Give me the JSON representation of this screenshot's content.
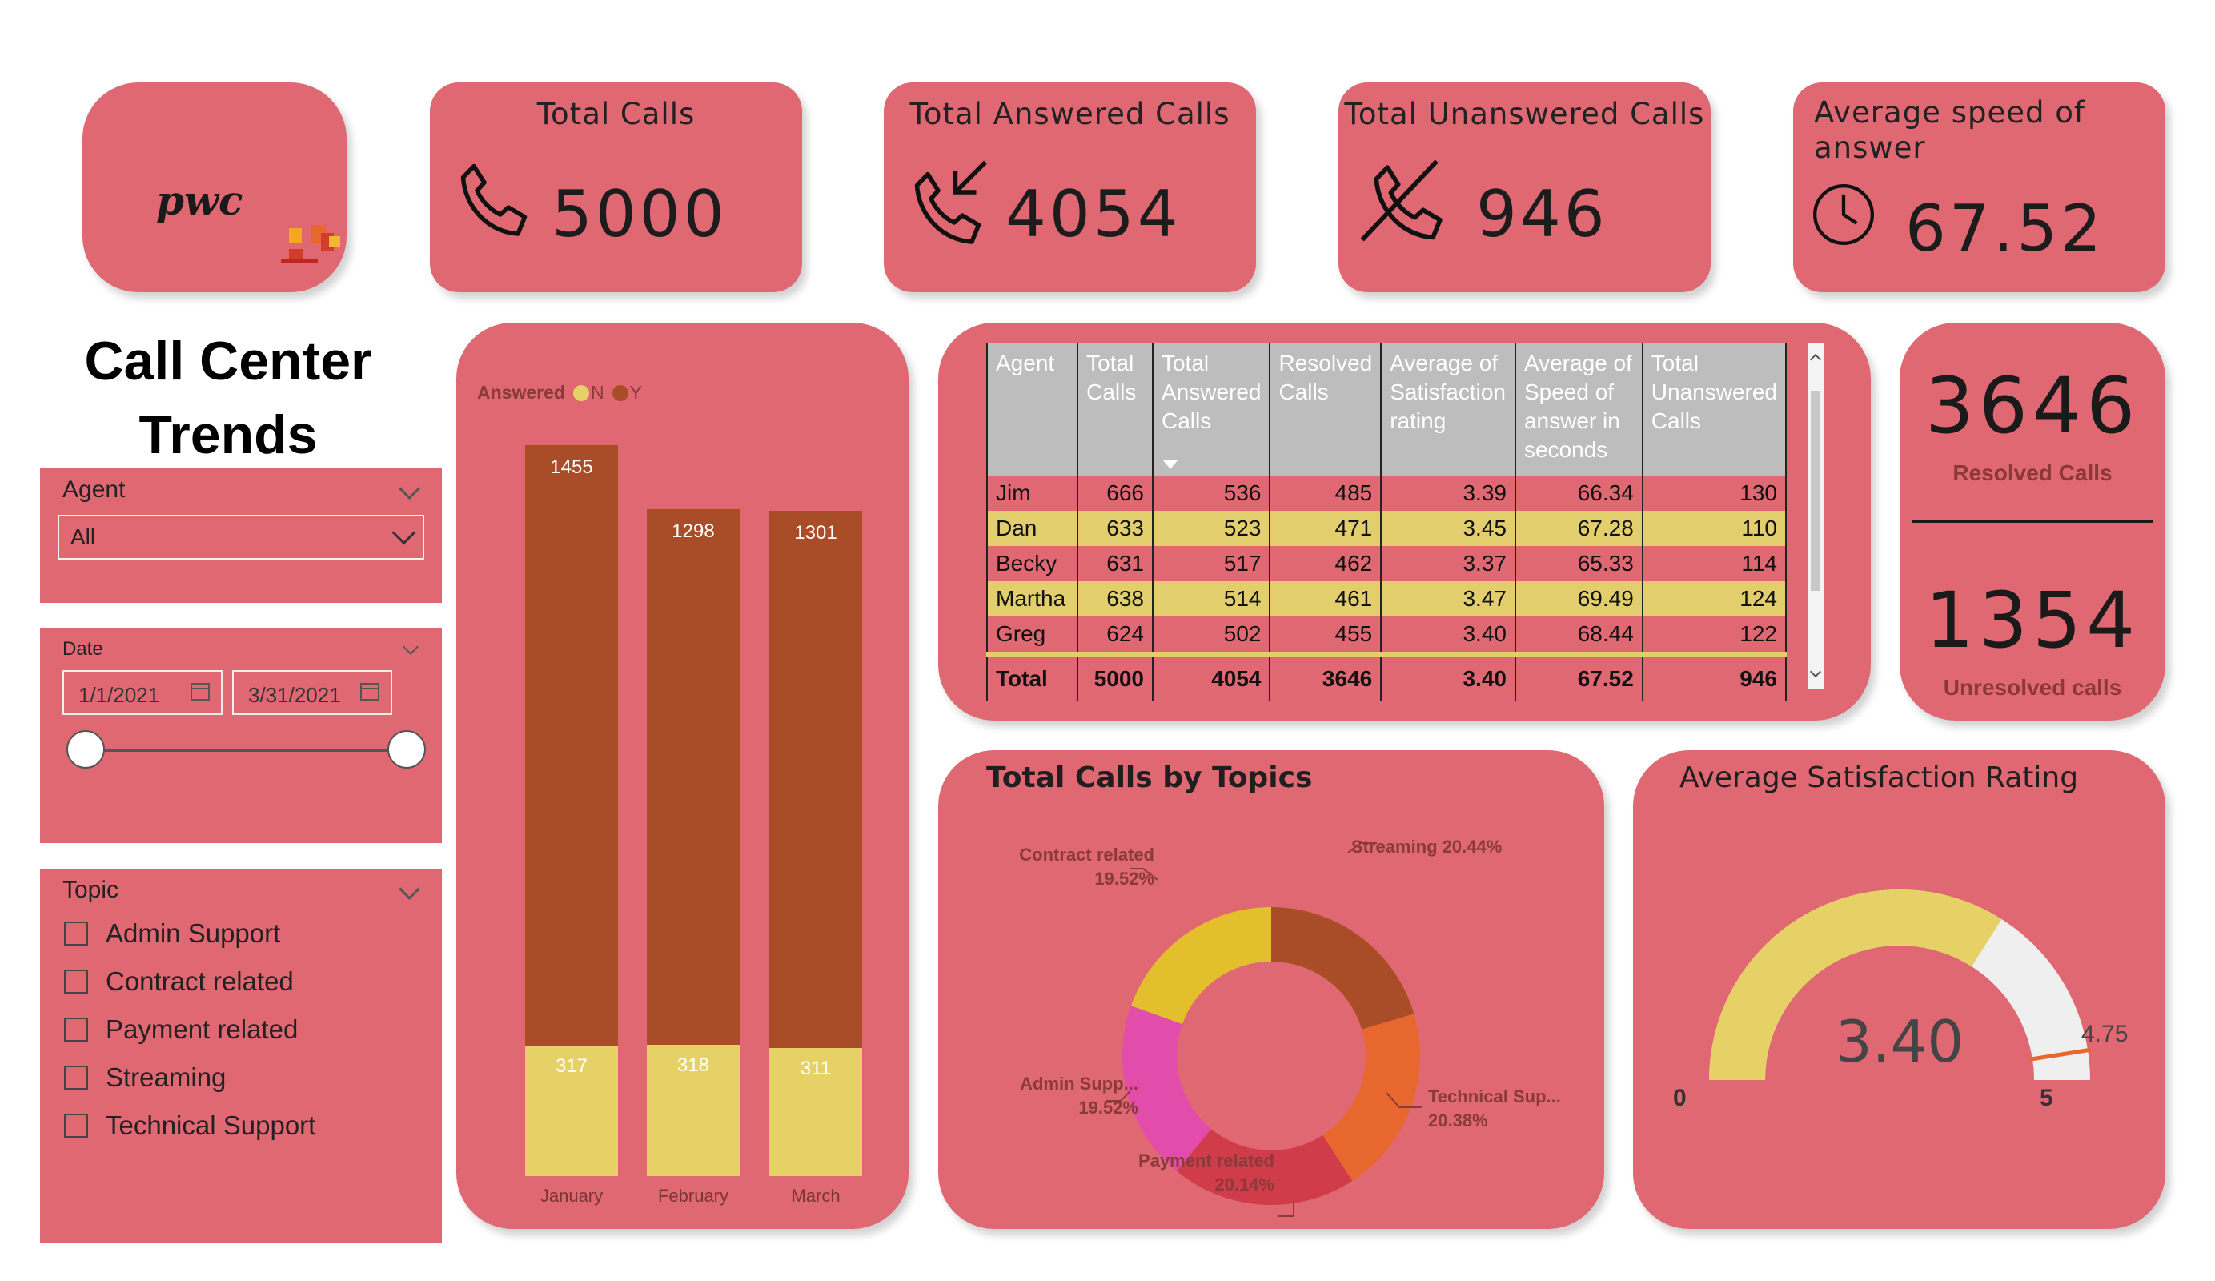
{
  "brand": {
    "logo_text": "pwc"
  },
  "kpis": {
    "total_calls": {
      "title": "Total Calls",
      "value": "5000"
    },
    "answered": {
      "title": "Total Answered Calls",
      "value": "4054"
    },
    "unanswered": {
      "title": "Total Unanswered Calls",
      "value": "946"
    },
    "speed": {
      "title_line1": "Average speed of",
      "title_line2": "answer",
      "value": "67.52"
    }
  },
  "page_title": {
    "line1": "Call Center",
    "line2": "Trends"
  },
  "filters": {
    "agent": {
      "label": "Agent",
      "selected": "All"
    },
    "date": {
      "label": "Date",
      "start": "1/1/2021",
      "end": "3/31/2021"
    },
    "topic": {
      "label": "Topic",
      "options": [
        "Admin Support",
        "Contract related",
        "Payment related",
        "Streaming",
        "Technical Support"
      ]
    }
  },
  "chart_data": {
    "type": "bar",
    "stacked": true,
    "title": "",
    "legend_title": "Answered",
    "categories": [
      "January",
      "February",
      "March"
    ],
    "series": [
      {
        "name": "N",
        "values": [
          317,
          318,
          311
        ],
        "color": "#e6d167"
      },
      {
        "name": "Y",
        "values": [
          1455,
          1298,
          1301
        ],
        "color": "#a94d28"
      }
    ]
  },
  "agent_table": {
    "columns": [
      "Agent",
      "Total Calls",
      "Total Answered Calls",
      "Resolved Calls",
      "Average of Satisfaction rating",
      "Average of Speed of answer in seconds",
      "Total Unanswered Calls"
    ],
    "rows": [
      [
        "Jim",
        "666",
        "536",
        "485",
        "3.39",
        "66.34",
        "130"
      ],
      [
        "Dan",
        "633",
        "523",
        "471",
        "3.45",
        "67.28",
        "110"
      ],
      [
        "Becky",
        "631",
        "517",
        "462",
        "3.37",
        "65.33",
        "114"
      ],
      [
        "Martha",
        "638",
        "514",
        "461",
        "3.47",
        "69.49",
        "124"
      ],
      [
        "Greg",
        "624",
        "502",
        "455",
        "3.40",
        "68.44",
        "122"
      ]
    ],
    "total": [
      "Total",
      "5000",
      "4054",
      "3646",
      "3.40",
      "67.52",
      "946"
    ]
  },
  "resolution": {
    "resolved_value": "3646",
    "resolved_label": "Resolved Calls",
    "unresolved_value": "1354",
    "unresolved_label": "Unresolved calls"
  },
  "topics_chart": {
    "title": "Total Calls by Topics",
    "slices": [
      {
        "name": "Streaming",
        "label": "Streaming 20.44%",
        "percent": 20.44,
        "color": "#a94d28"
      },
      {
        "name": "Technical Support",
        "label": "Technical Sup...",
        "pct_label": "20.38%",
        "percent": 20.38,
        "color": "#e8672f"
      },
      {
        "name": "Payment related",
        "label": "Payment related",
        "pct_label": "20.14%",
        "percent": 20.14,
        "color": "#d13c4b"
      },
      {
        "name": "Admin Support",
        "label": "Admin Supp...",
        "pct_label": "19.52%",
        "percent": 19.52,
        "color": "#e24caa"
      },
      {
        "name": "Contract related",
        "label": "Contract related",
        "pct_label": "19.52%",
        "percent": 19.52,
        "color": "#e3bf2e"
      }
    ]
  },
  "gauge": {
    "title": "Average Satisfaction Rating",
    "value": 3.4,
    "value_text": "3.40",
    "min": 0,
    "max": 5,
    "target": 4.75,
    "min_text": "0",
    "max_text": "5",
    "target_text": "4.75",
    "fill_color": "#e6d167",
    "track_color": "#efefef",
    "target_color": "#e8672f"
  }
}
